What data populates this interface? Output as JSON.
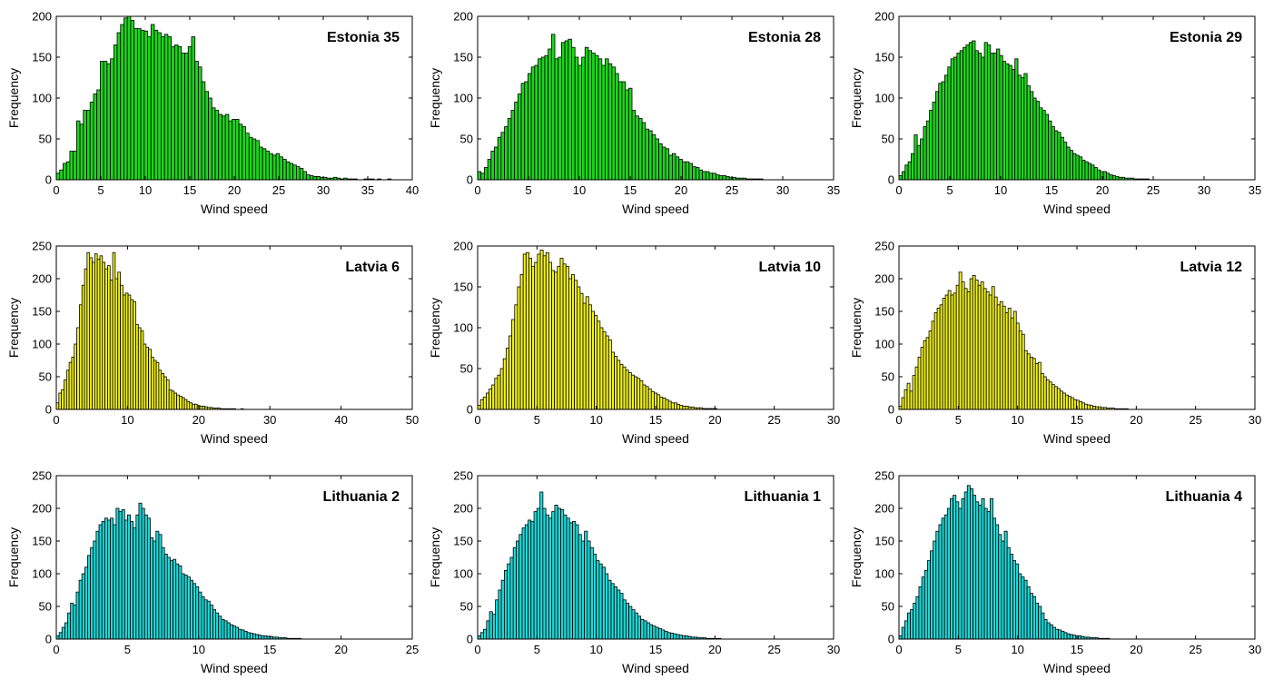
{
  "chart_data": [
    {
      "type": "bar",
      "title": "Estonia 35",
      "xlabel": "Wind speed",
      "ylabel": "Frequency",
      "xlim": [
        0,
        40
      ],
      "ylim": [
        0,
        200
      ],
      "xticks": [
        0,
        5,
        10,
        15,
        20,
        25,
        30,
        35,
        40
      ],
      "yticks": [
        0,
        50,
        100,
        150,
        200
      ],
      "color": "#1ed41e",
      "bin_start": 0.0,
      "bin_width": 0.38,
      "values": [
        8,
        12,
        20,
        22,
        35,
        35,
        72,
        68,
        85,
        85,
        95,
        105,
        110,
        145,
        145,
        142,
        148,
        165,
        180,
        190,
        198,
        200,
        195,
        185,
        185,
        183,
        182,
        175,
        190,
        183,
        180,
        175,
        178,
        175,
        163,
        165,
        163,
        155,
        155,
        163,
        175,
        145,
        138,
        120,
        108,
        100,
        88,
        85,
        80,
        78,
        80,
        72,
        74,
        74,
        68,
        65,
        57,
        52,
        50,
        48,
        40,
        38,
        35,
        32,
        30,
        32,
        28,
        25,
        22,
        20,
        18,
        16,
        14,
        10,
        6,
        5,
        4,
        4,
        3,
        3,
        2,
        2,
        3,
        2,
        1,
        2,
        1,
        1,
        1,
        0,
        0,
        1,
        1,
        1,
        0,
        1,
        0,
        0,
        1,
        0,
        0
      ]
    },
    {
      "type": "bar",
      "title": "Estonia 28",
      "xlabel": "Wind speed",
      "ylabel": "Frequency",
      "xlim": [
        0,
        35
      ],
      "ylim": [
        0,
        200
      ],
      "xticks": [
        0,
        5,
        10,
        15,
        20,
        25,
        30,
        35
      ],
      "yticks": [
        0,
        50,
        100,
        150,
        200
      ],
      "color": "#1ed41e",
      "bin_start": 0.0,
      "bin_width": 0.33,
      "values": [
        10,
        8,
        15,
        25,
        35,
        40,
        52,
        58,
        65,
        75,
        85,
        95,
        105,
        118,
        120,
        130,
        138,
        140,
        148,
        150,
        152,
        160,
        178,
        148,
        150,
        168,
        170,
        172,
        162,
        150,
        140,
        150,
        162,
        158,
        155,
        152,
        148,
        140,
        148,
        142,
        138,
        130,
        120,
        120,
        110,
        112,
        85,
        78,
        75,
        70,
        62,
        60,
        55,
        50,
        44,
        40,
        38,
        30,
        32,
        28,
        25,
        22,
        22,
        20,
        16,
        15,
        12,
        10,
        10,
        8,
        8,
        6,
        5,
        5,
        4,
        3,
        3,
        2,
        2,
        2,
        1,
        1,
        1,
        1,
        1,
        0,
        0,
        0,
        0,
        0,
        0,
        0,
        0,
        0,
        0,
        0,
        0,
        0,
        0,
        0
      ]
    },
    {
      "type": "bar",
      "title": "Estonia 29",
      "xlabel": "Wind speed",
      "ylabel": "Frequency",
      "xlim": [
        0,
        35
      ],
      "ylim": [
        0,
        200
      ],
      "xticks": [
        0,
        5,
        10,
        15,
        20,
        25,
        30,
        35
      ],
      "yticks": [
        0,
        50,
        100,
        150,
        200
      ],
      "color": "#1ed41e",
      "bin_start": 0.0,
      "bin_width": 0.3,
      "values": [
        5,
        10,
        18,
        22,
        32,
        55,
        42,
        50,
        65,
        72,
        85,
        95,
        108,
        118,
        120,
        128,
        138,
        148,
        150,
        155,
        158,
        162,
        165,
        168,
        170,
        158,
        155,
        150,
        168,
        165,
        155,
        155,
        160,
        152,
        145,
        142,
        140,
        135,
        148,
        128,
        125,
        130,
        115,
        108,
        100,
        96,
        88,
        85,
        80,
        72,
        65,
        60,
        58,
        52,
        46,
        40,
        36,
        32,
        30,
        28,
        24,
        22,
        20,
        18,
        15,
        12,
        10,
        10,
        8,
        6,
        5,
        4,
        3,
        3,
        2,
        2,
        2,
        1,
        1,
        1,
        1,
        1,
        0,
        0,
        0,
        0,
        0,
        0,
        0,
        0,
        0,
        0,
        0,
        0,
        0,
        0,
        0,
        0,
        0,
        0
      ]
    },
    {
      "type": "bar",
      "title": "Latvia 6",
      "xlabel": "Wind speed",
      "ylabel": "Frequency",
      "xlim": [
        0,
        50
      ],
      "ylim": [
        0,
        250
      ],
      "xticks": [
        0,
        10,
        20,
        30,
        40,
        50
      ],
      "yticks": [
        0,
        50,
        100,
        150,
        200,
        250
      ],
      "color": "#f2f21c",
      "bin_start": 0.0,
      "bin_width": 0.36,
      "values": [
        10,
        25,
        30,
        45,
        60,
        72,
        80,
        100,
        125,
        160,
        190,
        215,
        240,
        232,
        225,
        238,
        230,
        235,
        225,
        215,
        220,
        198,
        240,
        200,
        210,
        190,
        175,
        178,
        175,
        168,
        165,
        130,
        125,
        120,
        100,
        95,
        92,
        80,
        75,
        72,
        60,
        55,
        50,
        45,
        30,
        28,
        25,
        22,
        20,
        18,
        15,
        12,
        10,
        8,
        8,
        6,
        5,
        5,
        4,
        3,
        3,
        2,
        2,
        2,
        1,
        1,
        1,
        1,
        1,
        1,
        0,
        0,
        1,
        0,
        0,
        0,
        0,
        0,
        0,
        0,
        0,
        0,
        0,
        0,
        0,
        0,
        0,
        0,
        0,
        0,
        0,
        0,
        0,
        0,
        0,
        0,
        0,
        0,
        0,
        0
      ]
    },
    {
      "type": "bar",
      "title": "Latvia 10",
      "xlabel": "Wind speed",
      "ylabel": "Frequency",
      "xlim": [
        0,
        30
      ],
      "ylim": [
        0,
        200
      ],
      "xticks": [
        0,
        5,
        10,
        15,
        20,
        25,
        30
      ],
      "yticks": [
        0,
        50,
        100,
        150,
        200
      ],
      "color": "#f2f21c",
      "bin_start": 0.0,
      "bin_width": 0.24,
      "values": [
        5,
        12,
        15,
        20,
        25,
        30,
        38,
        42,
        50,
        62,
        75,
        90,
        110,
        128,
        150,
        165,
        190,
        192,
        185,
        175,
        180,
        190,
        195,
        188,
        192,
        180,
        170,
        168,
        175,
        185,
        178,
        175,
        160,
        165,
        158,
        150,
        142,
        130,
        138,
        128,
        120,
        115,
        108,
        100,
        95,
        90,
        85,
        70,
        65,
        60,
        55,
        52,
        48,
        45,
        42,
        40,
        38,
        35,
        30,
        28,
        25,
        22,
        20,
        18,
        15,
        14,
        12,
        10,
        8,
        8,
        6,
        5,
        4,
        4,
        3,
        3,
        2,
        2,
        2,
        1,
        1,
        1,
        1,
        1,
        0,
        0,
        0,
        0,
        0,
        0,
        0,
        0,
        0,
        0,
        0,
        0,
        0,
        0,
        0,
        0
      ]
    },
    {
      "type": "bar",
      "title": "Latvia 12",
      "xlabel": "Wind speed",
      "ylabel": "Frequency",
      "xlim": [
        0,
        30
      ],
      "ylim": [
        0,
        250
      ],
      "xticks": [
        0,
        5,
        10,
        15,
        20,
        25,
        30
      ],
      "yticks": [
        0,
        50,
        100,
        150,
        200,
        250
      ],
      "color": "#f2f21c",
      "bin_start": 0.0,
      "bin_width": 0.23,
      "values": [
        5,
        18,
        30,
        40,
        28,
        52,
        65,
        80,
        95,
        105,
        110,
        120,
        135,
        148,
        155,
        160,
        170,
        175,
        182,
        175,
        178,
        190,
        210,
        195,
        185,
        180,
        200,
        205,
        198,
        190,
        195,
        185,
        180,
        175,
        188,
        172,
        160,
        165,
        158,
        148,
        155,
        140,
        150,
        132,
        120,
        115,
        90,
        85,
        80,
        78,
        70,
        72,
        55,
        50,
        45,
        42,
        38,
        35,
        32,
        28,
        25,
        22,
        20,
        18,
        15,
        14,
        12,
        10,
        8,
        7,
        6,
        5,
        4,
        4,
        3,
        3,
        2,
        2,
        2,
        1,
        1,
        1,
        1,
        1,
        0,
        0,
        0,
        0,
        0,
        0,
        0,
        0,
        0,
        0,
        0,
        0,
        0,
        0,
        0,
        0
      ]
    },
    {
      "type": "bar",
      "title": "Lithuania 2",
      "xlabel": "Wind speed",
      "ylabel": "Frequency",
      "xlim": [
        0,
        25
      ],
      "ylim": [
        0,
        250
      ],
      "xticks": [
        0,
        5,
        10,
        15,
        20,
        25
      ],
      "yticks": [
        0,
        50,
        100,
        150,
        200,
        250
      ],
      "color": "#1ed8d8",
      "bin_start": 0.0,
      "bin_width": 0.2,
      "values": [
        5,
        10,
        18,
        25,
        40,
        55,
        52,
        72,
        90,
        100,
        110,
        128,
        140,
        150,
        165,
        175,
        180,
        185,
        182,
        185,
        175,
        200,
        195,
        198,
        182,
        190,
        180,
        170,
        190,
        208,
        200,
        190,
        185,
        155,
        150,
        165,
        160,
        140,
        130,
        125,
        120,
        122,
        115,
        112,
        100,
        98,
        95,
        90,
        85,
        80,
        72,
        65,
        60,
        58,
        52,
        45,
        40,
        35,
        30,
        28,
        25,
        22,
        20,
        18,
        15,
        14,
        12,
        10,
        9,
        8,
        7,
        6,
        5,
        5,
        4,
        4,
        3,
        3,
        2,
        2,
        2,
        1,
        1,
        1,
        1,
        1,
        0,
        0,
        0,
        0,
        0,
        0,
        0,
        0,
        0,
        0,
        0,
        0,
        0,
        0
      ]
    },
    {
      "type": "bar",
      "title": "Lithuania 1",
      "xlabel": "Wind speed",
      "ylabel": "Frequency",
      "xlim": [
        0,
        30
      ],
      "ylim": [
        0,
        250
      ],
      "xticks": [
        0,
        5,
        10,
        15,
        20,
        25,
        30
      ],
      "yticks": [
        0,
        50,
        100,
        150,
        200,
        250
      ],
      "color": "#1ed8d8",
      "bin_start": 0.0,
      "bin_width": 0.25,
      "values": [
        5,
        10,
        15,
        28,
        42,
        38,
        60,
        75,
        90,
        105,
        115,
        125,
        140,
        150,
        160,
        170,
        175,
        182,
        180,
        195,
        200,
        225,
        200,
        190,
        185,
        195,
        205,
        200,
        198,
        190,
        185,
        178,
        180,
        175,
        160,
        150,
        165,
        150,
        140,
        130,
        120,
        115,
        110,
        100,
        90,
        85,
        80,
        75,
        70,
        60,
        55,
        50,
        45,
        40,
        35,
        30,
        28,
        25,
        22,
        20,
        18,
        16,
        14,
        12,
        10,
        9,
        8,
        7,
        6,
        5,
        5,
        4,
        3,
        3,
        2,
        2,
        2,
        1,
        1,
        1,
        1,
        1,
        0,
        0,
        0,
        0,
        0,
        0,
        0,
        0,
        0,
        0,
        0,
        0,
        0,
        0,
        0,
        0,
        0,
        0
      ]
    },
    {
      "type": "bar",
      "title": "Lithuania 4",
      "xlabel": "Wind speed",
      "ylabel": "Frequency",
      "xlim": [
        0,
        30
      ],
      "ylim": [
        0,
        250
      ],
      "xticks": [
        0,
        5,
        10,
        15,
        20,
        25,
        30
      ],
      "yticks": [
        0,
        50,
        100,
        150,
        200,
        250
      ],
      "color": "#1ed8d8",
      "bin_start": 0.0,
      "bin_width": 0.24,
      "values": [
        5,
        18,
        28,
        40,
        45,
        55,
        65,
        80,
        95,
        105,
        120,
        135,
        150,
        165,
        175,
        185,
        190,
        200,
        215,
        220,
        210,
        200,
        215,
        225,
        235,
        230,
        220,
        210,
        205,
        215,
        200,
        195,
        215,
        185,
        175,
        160,
        150,
        165,
        140,
        130,
        120,
        115,
        100,
        95,
        90,
        80,
        70,
        65,
        55,
        50,
        40,
        30,
        25,
        22,
        18,
        15,
        14,
        12,
        10,
        8,
        7,
        6,
        5,
        5,
        4,
        3,
        3,
        2,
        2,
        2,
        1,
        1,
        1,
        1,
        0,
        0,
        0,
        0,
        0,
        0,
        0,
        0,
        0,
        0,
        0,
        0,
        0,
        0,
        0,
        0,
        0,
        0,
        0,
        0,
        0,
        0,
        0,
        0,
        0,
        0
      ]
    }
  ]
}
